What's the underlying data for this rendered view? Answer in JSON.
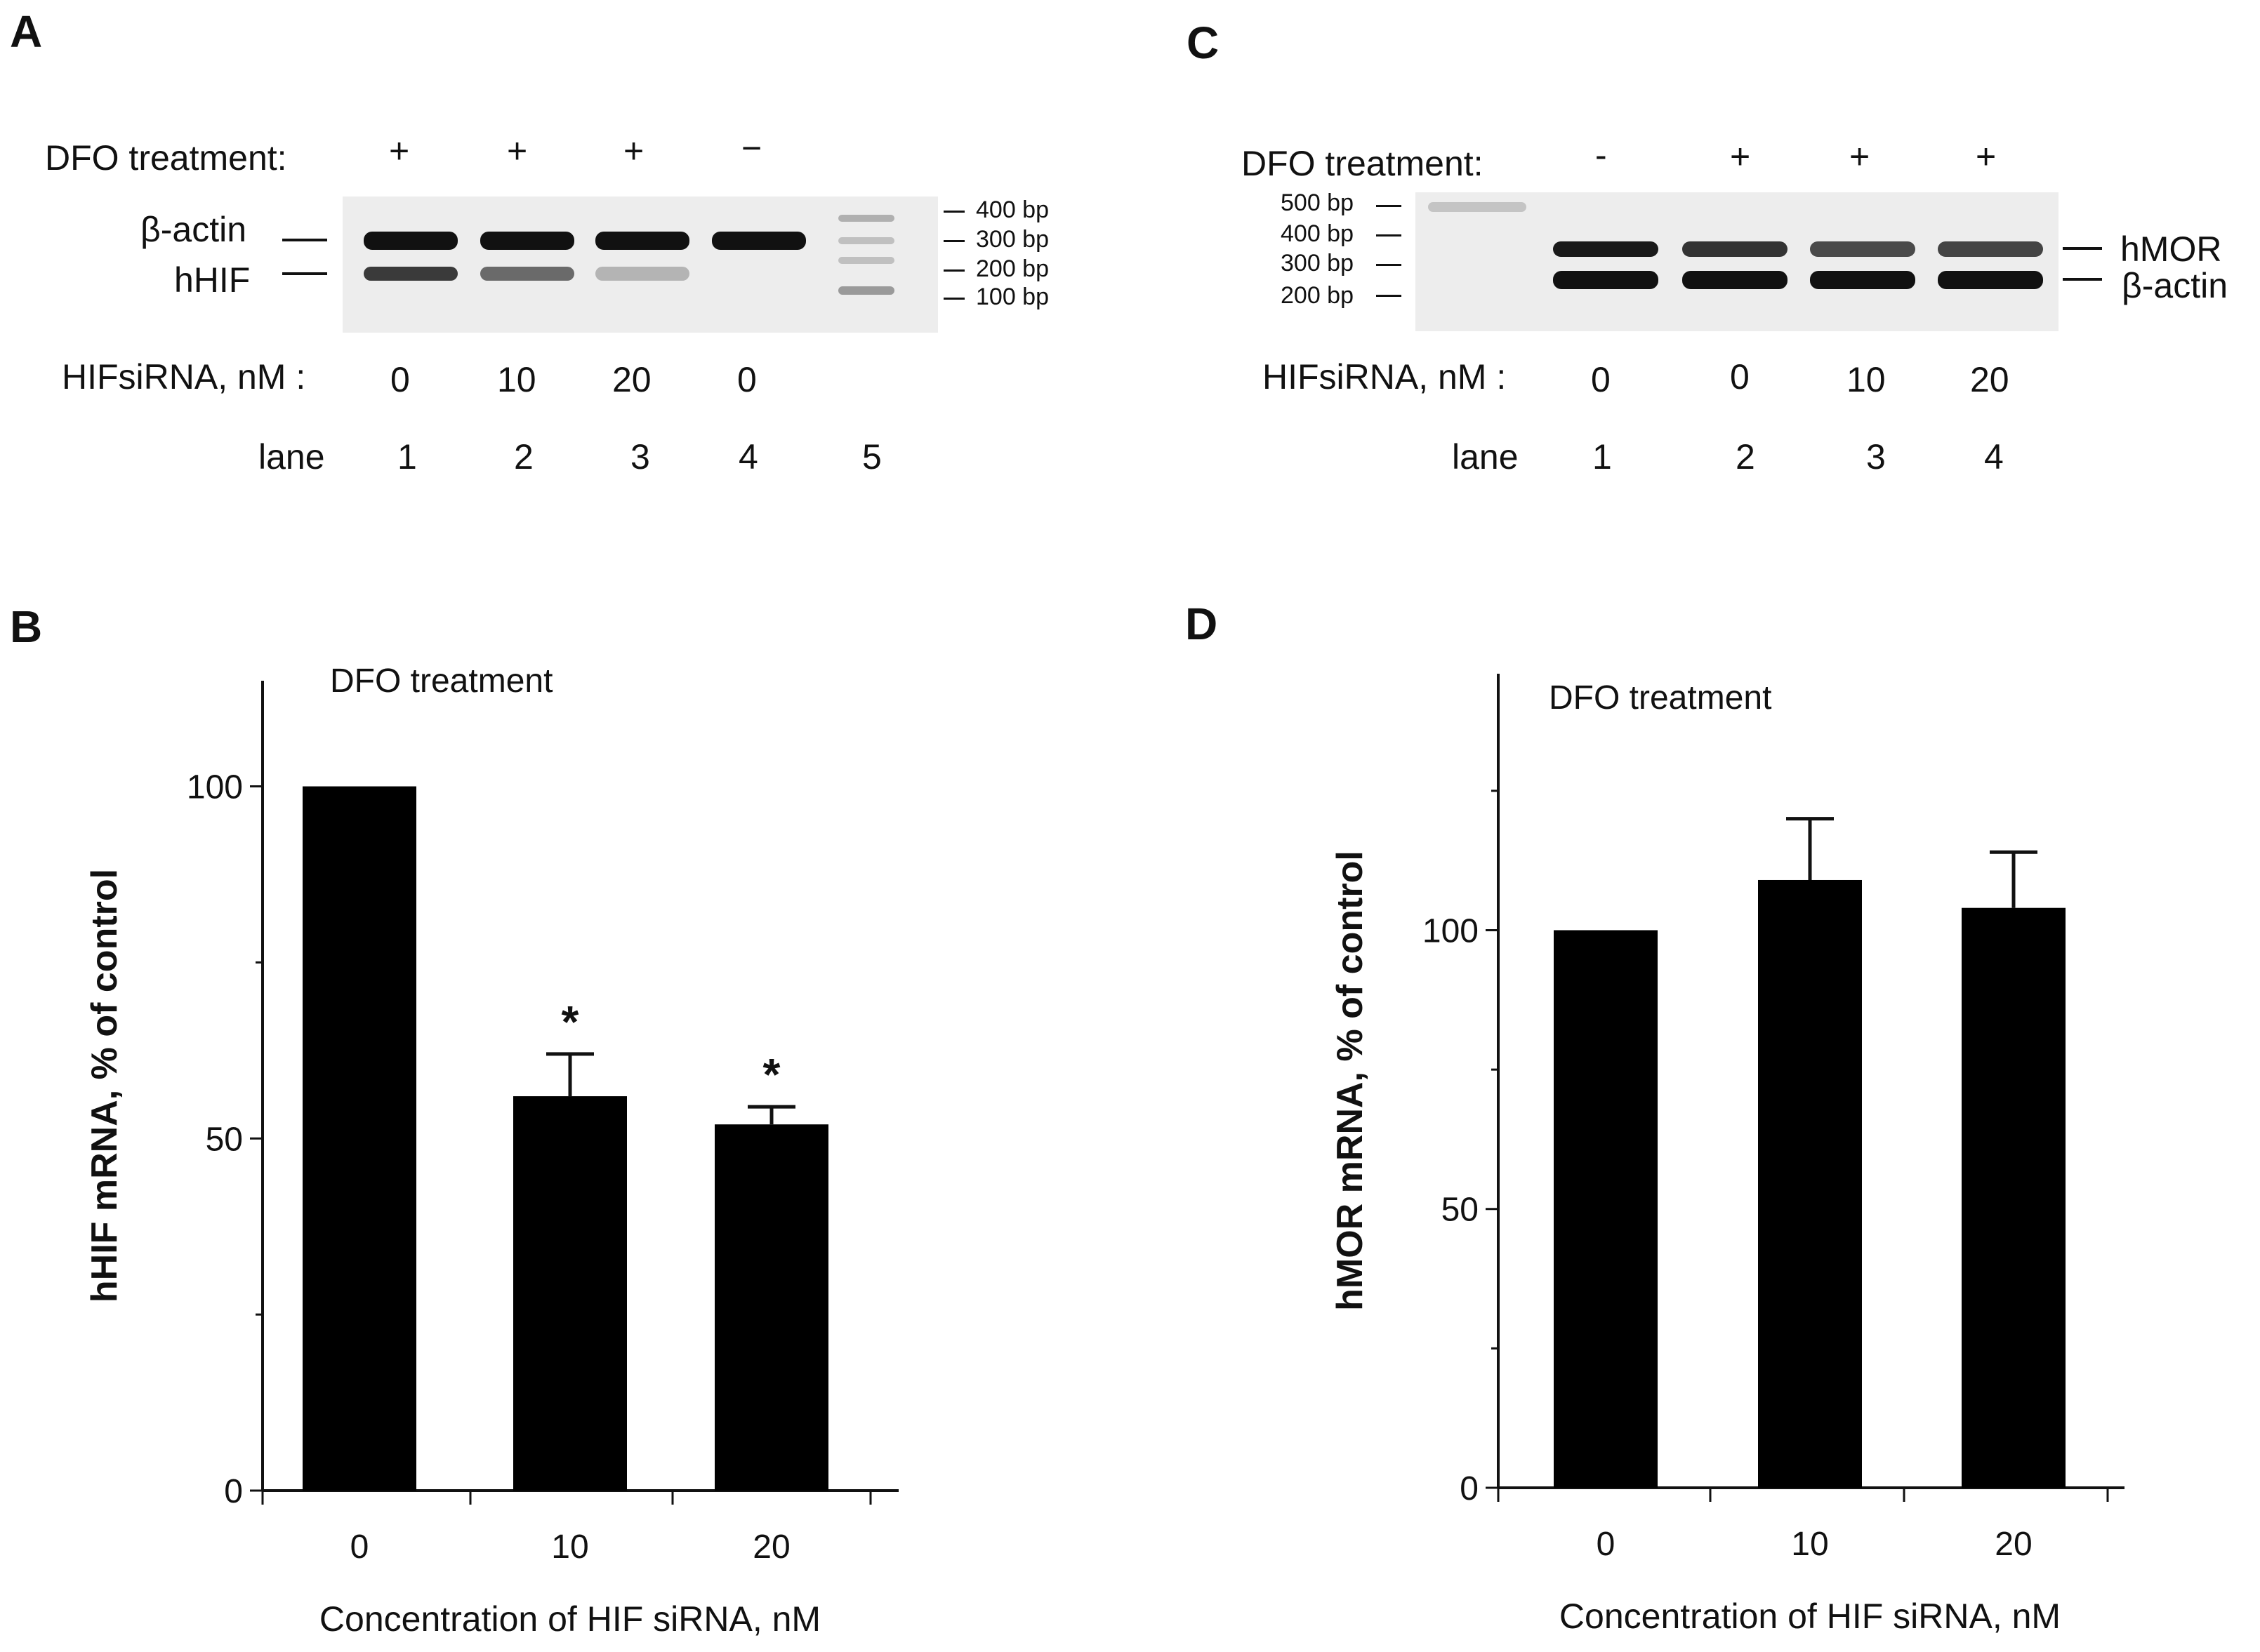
{
  "panelA": {
    "letter": "A",
    "dfo_label": "DFO treatment:",
    "dfo_signs": [
      "+",
      "+",
      "+",
      "−"
    ],
    "band_labels": [
      "β-actin",
      "hHIF"
    ],
    "ladder": [
      "400 bp",
      "300 bp",
      "200 bp",
      "100 bp"
    ],
    "sirna_label": "HIFsiRNA, nM :",
    "sirna_values": [
      "0",
      "10",
      "20",
      "0"
    ],
    "lane_label": "lane",
    "lane_values": [
      "1",
      "2",
      "3",
      "4",
      "5"
    ]
  },
  "panelC": {
    "letter": "C",
    "dfo_label": "DFO treatment:",
    "dfo_signs": [
      "-",
      "+",
      "+",
      "+"
    ],
    "ladder": [
      "500 bp",
      "400 bp",
      "300 bp",
      "200 bp"
    ],
    "band_labels": [
      "hMOR",
      "β-actin"
    ],
    "sirna_label": "HIFsiRNA, nM :",
    "sirna_values": [
      "0",
      "0",
      "10",
      "20"
    ],
    "lane_label": "lane",
    "lane_values": [
      "1",
      "2",
      "3",
      "4"
    ]
  },
  "chart_data": [
    {
      "panel": "B",
      "type": "bar",
      "annotation": "DFO treatment",
      "categories": [
        "0",
        "10",
        "20"
      ],
      "values": [
        100,
        56,
        52
      ],
      "errors": [
        0,
        6,
        2.5
      ],
      "significance": [
        "",
        "*",
        "*"
      ],
      "ylabel": "hHIF mRNA, % of control",
      "xlabel": "Concentration of HIF siRNA, nM",
      "ylim": [
        0,
        115
      ],
      "yticks": [
        0,
        50,
        100
      ],
      "color": "#000000"
    },
    {
      "panel": "D",
      "type": "bar",
      "annotation": "DFO treatment",
      "categories": [
        "0",
        "10",
        "20"
      ],
      "values": [
        100,
        109,
        104
      ],
      "errors": [
        0,
        11,
        10
      ],
      "significance": [
        "",
        "",
        ""
      ],
      "ylabel": "hMOR mRNA, % of control",
      "xlabel": "Concentration of HIF siRNA, nM",
      "ylim": [
        0,
        146
      ],
      "yticks": [
        0,
        50,
        100
      ],
      "color": "#000000"
    }
  ]
}
